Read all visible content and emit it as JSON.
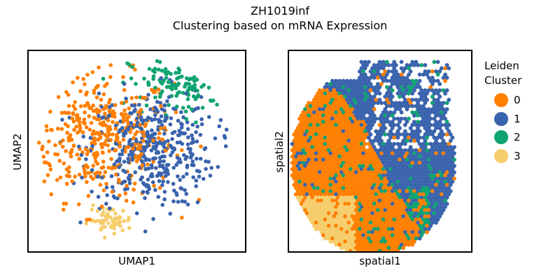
{
  "title_line1": "ZH1019inf",
  "title_line2": "Clustering based on mRNA Expression",
  "chart_data": [
    {
      "type": "scatter",
      "xlabel": "UMAP1",
      "ylabel": "UMAP2",
      "ticks": "none",
      "grid": false,
      "clusters": [
        {
          "name": "0",
          "color": "#ff7f00",
          "region": {
            "cx": -3.0,
            "cy": 1.2,
            "sx": 3.0,
            "sy": 2.8
          },
          "count": 420
        },
        {
          "name": "1",
          "color": "#3a63ad",
          "region": {
            "cx": 1.2,
            "cy": 0.2,
            "sx": 2.6,
            "sy": 2.6
          },
          "count": 420
        },
        {
          "name": "2",
          "color": "#0ea371",
          "region": {
            "cx": 3.8,
            "cy": 6.0,
            "sx": 2.2,
            "sy": 1.3
          },
          "count": 150
        },
        {
          "name": "3",
          "color": "#f6cd6b",
          "region": {
            "cx": -2.2,
            "cy": -6.2,
            "sx": 0.9,
            "sy": 0.6
          },
          "count": 60
        }
      ],
      "xlim": [
        -9,
        9
      ],
      "ylim": [
        -9,
        9
      ]
    },
    {
      "type": "scatter",
      "xlabel": "spatial1",
      "ylabel": "spatial2",
      "ticks": "none",
      "grid": false,
      "clusters": [
        {
          "name": "0",
          "color": "#ff7f00",
          "region": "left-center"
        },
        {
          "name": "1",
          "color": "#3a63ad",
          "region": "right and top"
        },
        {
          "name": "2",
          "color": "#0ea371",
          "region": "scattered, lower center band"
        },
        {
          "name": "3",
          "color": "#f6cd6b",
          "region": "bottom-left"
        }
      ]
    }
  ],
  "legend": {
    "title_line1": "Leiden",
    "title_line2": "Cluster",
    "placement": "right",
    "items": [
      {
        "label": "0",
        "color": "#ff7f00"
      },
      {
        "label": "1",
        "color": "#3a63ad"
      },
      {
        "label": "2",
        "color": "#0ea371"
      },
      {
        "label": "3",
        "color": "#f6cd6b"
      }
    ]
  }
}
